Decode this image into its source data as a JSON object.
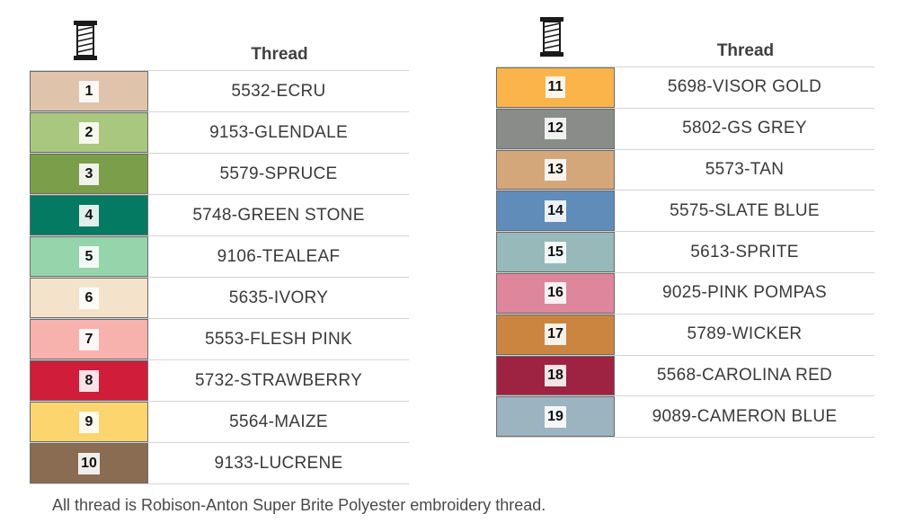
{
  "header_label": "Thread",
  "icon": "thread-spool-icon",
  "left_rows": [
    {
      "num": "1",
      "name": "5532-ECRU",
      "color": "#dfc4ab"
    },
    {
      "num": "2",
      "name": "9153-GLENDALE",
      "color": "#a9c77f"
    },
    {
      "num": "3",
      "name": "5579-SPRUCE",
      "color": "#7a9e49"
    },
    {
      "num": "4",
      "name": "5748-GREEN STONE",
      "color": "#047a62"
    },
    {
      "num": "5",
      "name": "9106-TEALEAF",
      "color": "#96d4ab"
    },
    {
      "num": "6",
      "name": "5635-IVORY",
      "color": "#f4e3cb"
    },
    {
      "num": "7",
      "name": "5553-FLESH PINK",
      "color": "#f8b2ad"
    },
    {
      "num": "8",
      "name": "5732-STRAWBERRY",
      "color": "#d01d3a"
    },
    {
      "num": "9",
      "name": "5564-MAIZE",
      "color": "#fdd56e"
    },
    {
      "num": "10",
      "name": "9133-LUCRENE",
      "color": "#8a6c52"
    }
  ],
  "right_rows": [
    {
      "num": "11",
      "name": "5698-VISOR GOLD",
      "color": "#fbb44a"
    },
    {
      "num": "12",
      "name": "5802-GS GREY",
      "color": "#8a8c89"
    },
    {
      "num": "13",
      "name": "5573-TAN",
      "color": "#d4a77b"
    },
    {
      "num": "14",
      "name": "5575-SLATE BLUE",
      "color": "#5f8cb9"
    },
    {
      "num": "15",
      "name": "5613-SPRITE",
      "color": "#97b9b9"
    },
    {
      "num": "16",
      "name": "9025-PINK POMPAS",
      "color": "#de869c"
    },
    {
      "num": "17",
      "name": "5789-WICKER",
      "color": "#cb8540"
    },
    {
      "num": "18",
      "name": "5568-CAROLINA RED",
      "color": "#9e2342"
    },
    {
      "num": "19",
      "name": "9089-CAMERON BLUE",
      "color": "#9cb3c0"
    }
  ],
  "footer_note": "All thread is Robison-Anton Super Brite Polyester embroidery thread."
}
